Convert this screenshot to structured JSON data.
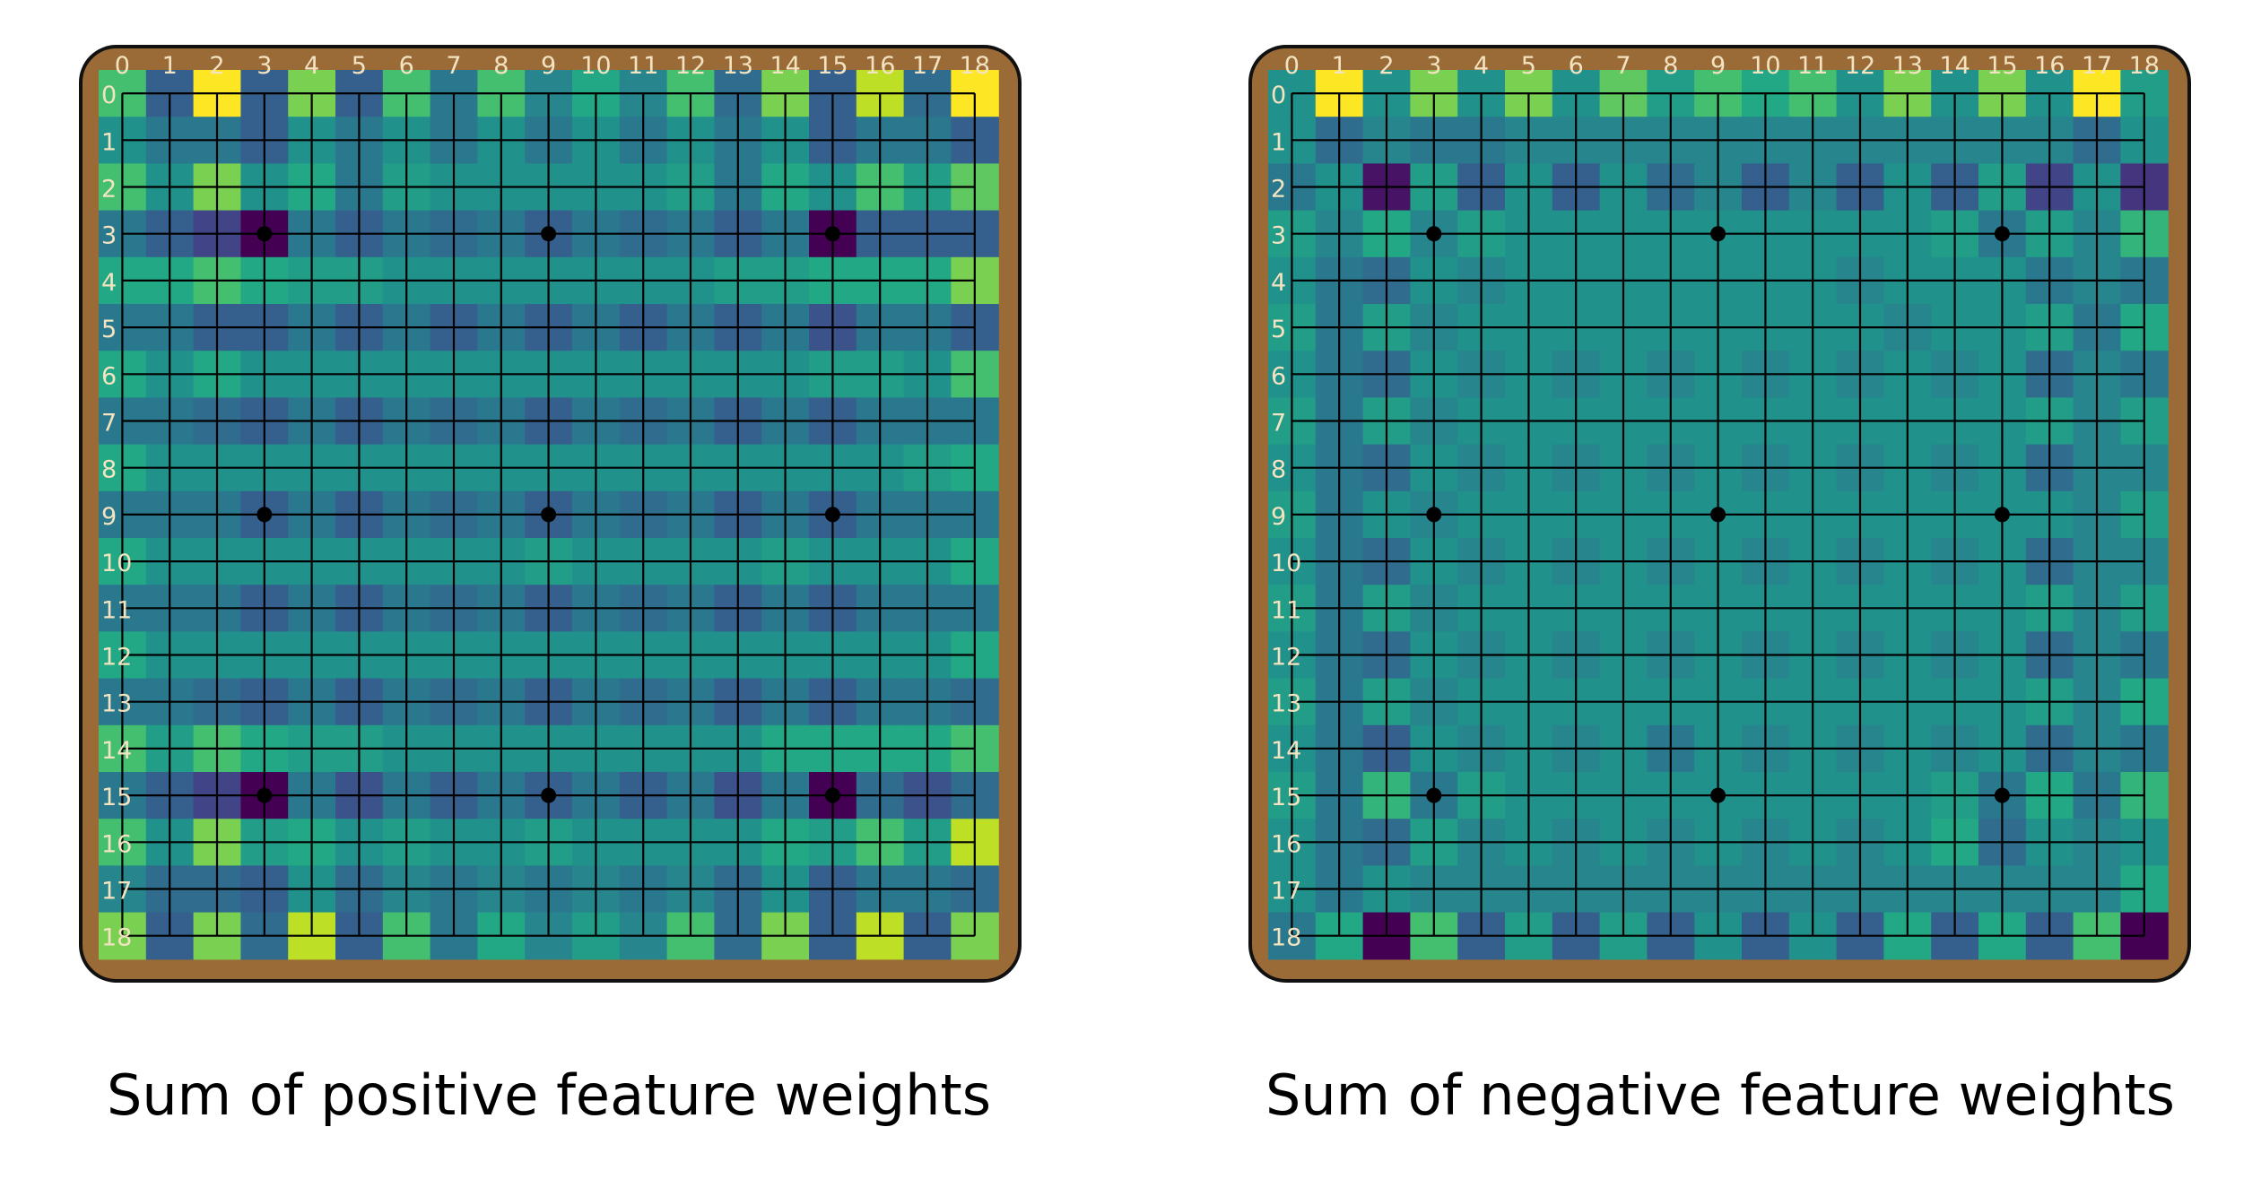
{
  "chart_data": [
    {
      "type": "heatmap",
      "title": "Sum of positive feature weights",
      "x_tick_labels": [
        "0",
        "1",
        "2",
        "3",
        "4",
        "5",
        "6",
        "7",
        "8",
        "9",
        "10",
        "11",
        "12",
        "13",
        "14",
        "15",
        "16",
        "17",
        "18"
      ],
      "y_tick_labels": [
        "0",
        "1",
        "2",
        "3",
        "4",
        "5",
        "6",
        "7",
        "8",
        "9",
        "10",
        "11",
        "12",
        "13",
        "14",
        "15",
        "16",
        "17",
        "18"
      ],
      "colormap": "viridis",
      "value_range": [
        0,
        1
      ],
      "star_points": [
        3,
        9,
        15
      ],
      "values": [
        [
          0.7,
          0.3,
          1.0,
          0.3,
          0.8,
          0.3,
          0.7,
          0.4,
          0.7,
          0.45,
          0.6,
          0.45,
          0.7,
          0.35,
          0.8,
          0.3,
          0.9,
          0.35,
          1.0
        ],
        [
          0.5,
          0.4,
          0.4,
          0.3,
          0.5,
          0.4,
          0.5,
          0.4,
          0.5,
          0.4,
          0.5,
          0.4,
          0.5,
          0.4,
          0.5,
          0.3,
          0.4,
          0.4,
          0.3
        ],
        [
          0.7,
          0.5,
          0.8,
          0.5,
          0.6,
          0.4,
          0.55,
          0.5,
          0.5,
          0.5,
          0.5,
          0.5,
          0.55,
          0.4,
          0.6,
          0.5,
          0.7,
          0.55,
          0.75
        ],
        [
          0.4,
          0.3,
          0.2,
          0.0,
          0.4,
          0.3,
          0.4,
          0.35,
          0.4,
          0.3,
          0.4,
          0.35,
          0.4,
          0.3,
          0.4,
          0.0,
          0.3,
          0.3,
          0.3
        ],
        [
          0.6,
          0.6,
          0.7,
          0.6,
          0.55,
          0.55,
          0.5,
          0.5,
          0.5,
          0.5,
          0.5,
          0.5,
          0.5,
          0.55,
          0.55,
          0.6,
          0.6,
          0.6,
          0.8
        ],
        [
          0.4,
          0.4,
          0.3,
          0.3,
          0.4,
          0.3,
          0.4,
          0.3,
          0.4,
          0.3,
          0.4,
          0.3,
          0.4,
          0.3,
          0.4,
          0.25,
          0.4,
          0.4,
          0.3
        ],
        [
          0.6,
          0.5,
          0.6,
          0.5,
          0.5,
          0.5,
          0.5,
          0.5,
          0.5,
          0.5,
          0.5,
          0.5,
          0.5,
          0.5,
          0.5,
          0.55,
          0.55,
          0.5,
          0.7
        ],
        [
          0.4,
          0.4,
          0.35,
          0.3,
          0.4,
          0.3,
          0.4,
          0.35,
          0.4,
          0.3,
          0.4,
          0.35,
          0.4,
          0.3,
          0.4,
          0.3,
          0.4,
          0.4,
          0.4
        ],
        [
          0.6,
          0.5,
          0.5,
          0.5,
          0.5,
          0.5,
          0.5,
          0.5,
          0.5,
          0.5,
          0.5,
          0.5,
          0.5,
          0.5,
          0.5,
          0.5,
          0.5,
          0.55,
          0.6
        ],
        [
          0.4,
          0.4,
          0.4,
          0.3,
          0.4,
          0.3,
          0.4,
          0.35,
          0.4,
          0.3,
          0.4,
          0.35,
          0.4,
          0.3,
          0.4,
          0.3,
          0.4,
          0.4,
          0.4
        ],
        [
          0.6,
          0.5,
          0.5,
          0.5,
          0.5,
          0.5,
          0.5,
          0.5,
          0.5,
          0.55,
          0.5,
          0.5,
          0.5,
          0.5,
          0.55,
          0.5,
          0.5,
          0.5,
          0.6
        ],
        [
          0.4,
          0.4,
          0.4,
          0.3,
          0.4,
          0.3,
          0.4,
          0.35,
          0.4,
          0.3,
          0.4,
          0.35,
          0.4,
          0.3,
          0.4,
          0.3,
          0.4,
          0.4,
          0.4
        ],
        [
          0.6,
          0.5,
          0.5,
          0.5,
          0.5,
          0.5,
          0.5,
          0.5,
          0.5,
          0.5,
          0.5,
          0.5,
          0.5,
          0.5,
          0.5,
          0.5,
          0.5,
          0.5,
          0.6
        ],
        [
          0.4,
          0.4,
          0.35,
          0.3,
          0.4,
          0.3,
          0.4,
          0.35,
          0.4,
          0.3,
          0.4,
          0.35,
          0.4,
          0.3,
          0.4,
          0.3,
          0.4,
          0.4,
          0.35
        ],
        [
          0.7,
          0.55,
          0.7,
          0.6,
          0.55,
          0.55,
          0.5,
          0.5,
          0.5,
          0.5,
          0.5,
          0.5,
          0.5,
          0.5,
          0.6,
          0.6,
          0.6,
          0.6,
          0.7
        ],
        [
          0.4,
          0.3,
          0.2,
          0.0,
          0.4,
          0.25,
          0.4,
          0.3,
          0.4,
          0.3,
          0.4,
          0.3,
          0.4,
          0.25,
          0.4,
          0.0,
          0.35,
          0.25,
          0.35
        ],
        [
          0.7,
          0.5,
          0.8,
          0.55,
          0.6,
          0.5,
          0.55,
          0.5,
          0.5,
          0.55,
          0.5,
          0.5,
          0.5,
          0.5,
          0.6,
          0.55,
          0.7,
          0.55,
          0.9
        ],
        [
          0.45,
          0.35,
          0.35,
          0.3,
          0.5,
          0.35,
          0.45,
          0.4,
          0.45,
          0.4,
          0.45,
          0.4,
          0.45,
          0.35,
          0.5,
          0.3,
          0.4,
          0.4,
          0.35
        ],
        [
          0.8,
          0.3,
          0.8,
          0.35,
          0.9,
          0.3,
          0.7,
          0.4,
          0.6,
          0.45,
          0.55,
          0.45,
          0.7,
          0.35,
          0.8,
          0.3,
          0.9,
          0.3,
          0.8
        ]
      ]
    },
    {
      "type": "heatmap",
      "title": "Sum of negative feature weights",
      "x_tick_labels": [
        "0",
        "1",
        "2",
        "3",
        "4",
        "5",
        "6",
        "7",
        "8",
        "9",
        "10",
        "11",
        "12",
        "13",
        "14",
        "15",
        "16",
        "17",
        "18"
      ],
      "y_tick_labels": [
        "0",
        "1",
        "2",
        "3",
        "4",
        "5",
        "6",
        "7",
        "8",
        "9",
        "10",
        "11",
        "12",
        "13",
        "14",
        "15",
        "16",
        "17",
        "18"
      ],
      "colormap": "viridis",
      "value_range": [
        0,
        1
      ],
      "star_points": [
        3,
        9,
        15
      ],
      "values": [
        [
          0.5,
          1.0,
          0.5,
          0.8,
          0.5,
          0.8,
          0.5,
          0.75,
          0.55,
          0.7,
          0.6,
          0.7,
          0.5,
          0.8,
          0.5,
          0.8,
          0.5,
          1.0,
          0.55
        ],
        [
          0.5,
          0.35,
          0.45,
          0.4,
          0.4,
          0.45,
          0.45,
          0.45,
          0.45,
          0.45,
          0.45,
          0.45,
          0.45,
          0.45,
          0.45,
          0.45,
          0.45,
          0.35,
          0.5
        ],
        [
          0.4,
          0.5,
          0.05,
          0.55,
          0.3,
          0.5,
          0.3,
          0.5,
          0.35,
          0.45,
          0.3,
          0.45,
          0.3,
          0.5,
          0.3,
          0.55,
          0.2,
          0.5,
          0.15
        ],
        [
          0.55,
          0.45,
          0.6,
          0.45,
          0.55,
          0.5,
          0.5,
          0.5,
          0.5,
          0.5,
          0.5,
          0.5,
          0.5,
          0.5,
          0.55,
          0.4,
          0.55,
          0.45,
          0.65
        ],
        [
          0.5,
          0.4,
          0.35,
          0.5,
          0.45,
          0.5,
          0.5,
          0.5,
          0.5,
          0.5,
          0.5,
          0.5,
          0.45,
          0.5,
          0.5,
          0.5,
          0.4,
          0.45,
          0.4
        ],
        [
          0.55,
          0.4,
          0.55,
          0.45,
          0.5,
          0.5,
          0.5,
          0.5,
          0.5,
          0.5,
          0.5,
          0.5,
          0.5,
          0.45,
          0.5,
          0.5,
          0.55,
          0.4,
          0.6
        ],
        [
          0.5,
          0.4,
          0.35,
          0.5,
          0.45,
          0.5,
          0.45,
          0.5,
          0.45,
          0.5,
          0.45,
          0.5,
          0.45,
          0.5,
          0.45,
          0.5,
          0.35,
          0.45,
          0.4
        ],
        [
          0.55,
          0.4,
          0.55,
          0.45,
          0.5,
          0.5,
          0.5,
          0.5,
          0.5,
          0.5,
          0.5,
          0.5,
          0.5,
          0.5,
          0.5,
          0.5,
          0.55,
          0.45,
          0.55
        ],
        [
          0.5,
          0.4,
          0.35,
          0.5,
          0.45,
          0.5,
          0.45,
          0.5,
          0.45,
          0.5,
          0.45,
          0.5,
          0.45,
          0.5,
          0.45,
          0.5,
          0.35,
          0.45,
          0.45
        ],
        [
          0.55,
          0.4,
          0.5,
          0.45,
          0.5,
          0.5,
          0.5,
          0.5,
          0.5,
          0.5,
          0.5,
          0.5,
          0.5,
          0.5,
          0.5,
          0.5,
          0.5,
          0.45,
          0.55
        ],
        [
          0.5,
          0.4,
          0.35,
          0.5,
          0.45,
          0.5,
          0.45,
          0.5,
          0.45,
          0.5,
          0.45,
          0.5,
          0.45,
          0.5,
          0.45,
          0.5,
          0.35,
          0.45,
          0.45
        ],
        [
          0.55,
          0.4,
          0.55,
          0.45,
          0.5,
          0.5,
          0.5,
          0.5,
          0.5,
          0.5,
          0.5,
          0.5,
          0.5,
          0.5,
          0.5,
          0.5,
          0.55,
          0.45,
          0.55
        ],
        [
          0.5,
          0.4,
          0.35,
          0.5,
          0.45,
          0.5,
          0.45,
          0.5,
          0.45,
          0.5,
          0.45,
          0.5,
          0.45,
          0.5,
          0.45,
          0.5,
          0.35,
          0.45,
          0.4
        ],
        [
          0.55,
          0.4,
          0.55,
          0.45,
          0.5,
          0.5,
          0.5,
          0.5,
          0.5,
          0.5,
          0.5,
          0.5,
          0.5,
          0.5,
          0.5,
          0.5,
          0.55,
          0.45,
          0.6
        ],
        [
          0.5,
          0.4,
          0.3,
          0.5,
          0.45,
          0.5,
          0.45,
          0.5,
          0.4,
          0.5,
          0.45,
          0.5,
          0.45,
          0.5,
          0.45,
          0.5,
          0.35,
          0.45,
          0.4
        ],
        [
          0.55,
          0.4,
          0.65,
          0.4,
          0.55,
          0.5,
          0.5,
          0.5,
          0.5,
          0.5,
          0.5,
          0.5,
          0.5,
          0.5,
          0.55,
          0.4,
          0.6,
          0.4,
          0.65
        ],
        [
          0.5,
          0.4,
          0.35,
          0.55,
          0.45,
          0.5,
          0.45,
          0.5,
          0.45,
          0.5,
          0.45,
          0.5,
          0.45,
          0.5,
          0.6,
          0.35,
          0.5,
          0.45,
          0.5
        ],
        [
          0.5,
          0.4,
          0.5,
          0.45,
          0.45,
          0.45,
          0.45,
          0.45,
          0.45,
          0.45,
          0.45,
          0.45,
          0.45,
          0.45,
          0.45,
          0.45,
          0.45,
          0.45,
          0.6
        ],
        [
          0.4,
          0.6,
          0.0,
          0.7,
          0.3,
          0.55,
          0.3,
          0.55,
          0.3,
          0.5,
          0.3,
          0.5,
          0.3,
          0.6,
          0.3,
          0.6,
          0.3,
          0.7,
          0.0
        ]
      ]
    }
  ]
}
